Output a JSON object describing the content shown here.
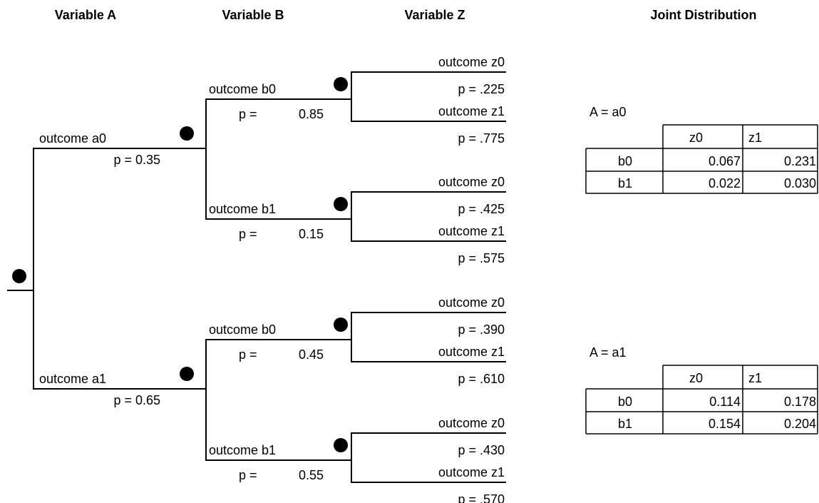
{
  "headers": [
    "Variable A",
    "Variable B",
    "Variable Z",
    "Joint Distribution"
  ],
  "a_branches": [
    {
      "label": "outcome a0",
      "p": "p = 0.35",
      "b_branches": [
        {
          "label": "outcome b0",
          "p_label": "p =",
          "p": "0.85",
          "z_branches": [
            {
              "label": "outcome z0",
              "p": "p = .225"
            },
            {
              "label": "outcome z1",
              "p": "p = .775"
            }
          ]
        },
        {
          "label": "outcome b1",
          "p_label": "p =",
          "p": "0.15",
          "z_branches": [
            {
              "label": "outcome z0",
              "p": "p = .425"
            },
            {
              "label": "outcome z1",
              "p": "p = .575"
            }
          ]
        }
      ]
    },
    {
      "label": "outcome a1",
      "p": "p = 0.65",
      "b_branches": [
        {
          "label": "outcome b0",
          "p_label": "p =",
          "p": "0.45",
          "z_branches": [
            {
              "label": "outcome z0",
              "p": "p = .390"
            },
            {
              "label": "outcome z1",
              "p": "p = .610"
            }
          ]
        },
        {
          "label": "outcome b1",
          "p_label": "p =",
          "p": "0.55",
          "z_branches": [
            {
              "label": "outcome z0",
              "p": "p = .430"
            },
            {
              "label": "outcome z1",
              "p": "p = .570"
            }
          ]
        }
      ]
    }
  ],
  "tables": [
    {
      "title": "A = a0",
      "columns": [
        "z0",
        "z1"
      ],
      "rows": [
        [
          "b0",
          "0.067",
          "0.231"
        ],
        [
          "b1",
          "0.022",
          "0.030"
        ]
      ]
    },
    {
      "title": "A = a1",
      "columns": [
        "z0",
        "z1"
      ],
      "rows": [
        [
          "b0",
          "0.114",
          "0.178"
        ],
        [
          "b1",
          "0.154",
          "0.204"
        ]
      ]
    }
  ]
}
